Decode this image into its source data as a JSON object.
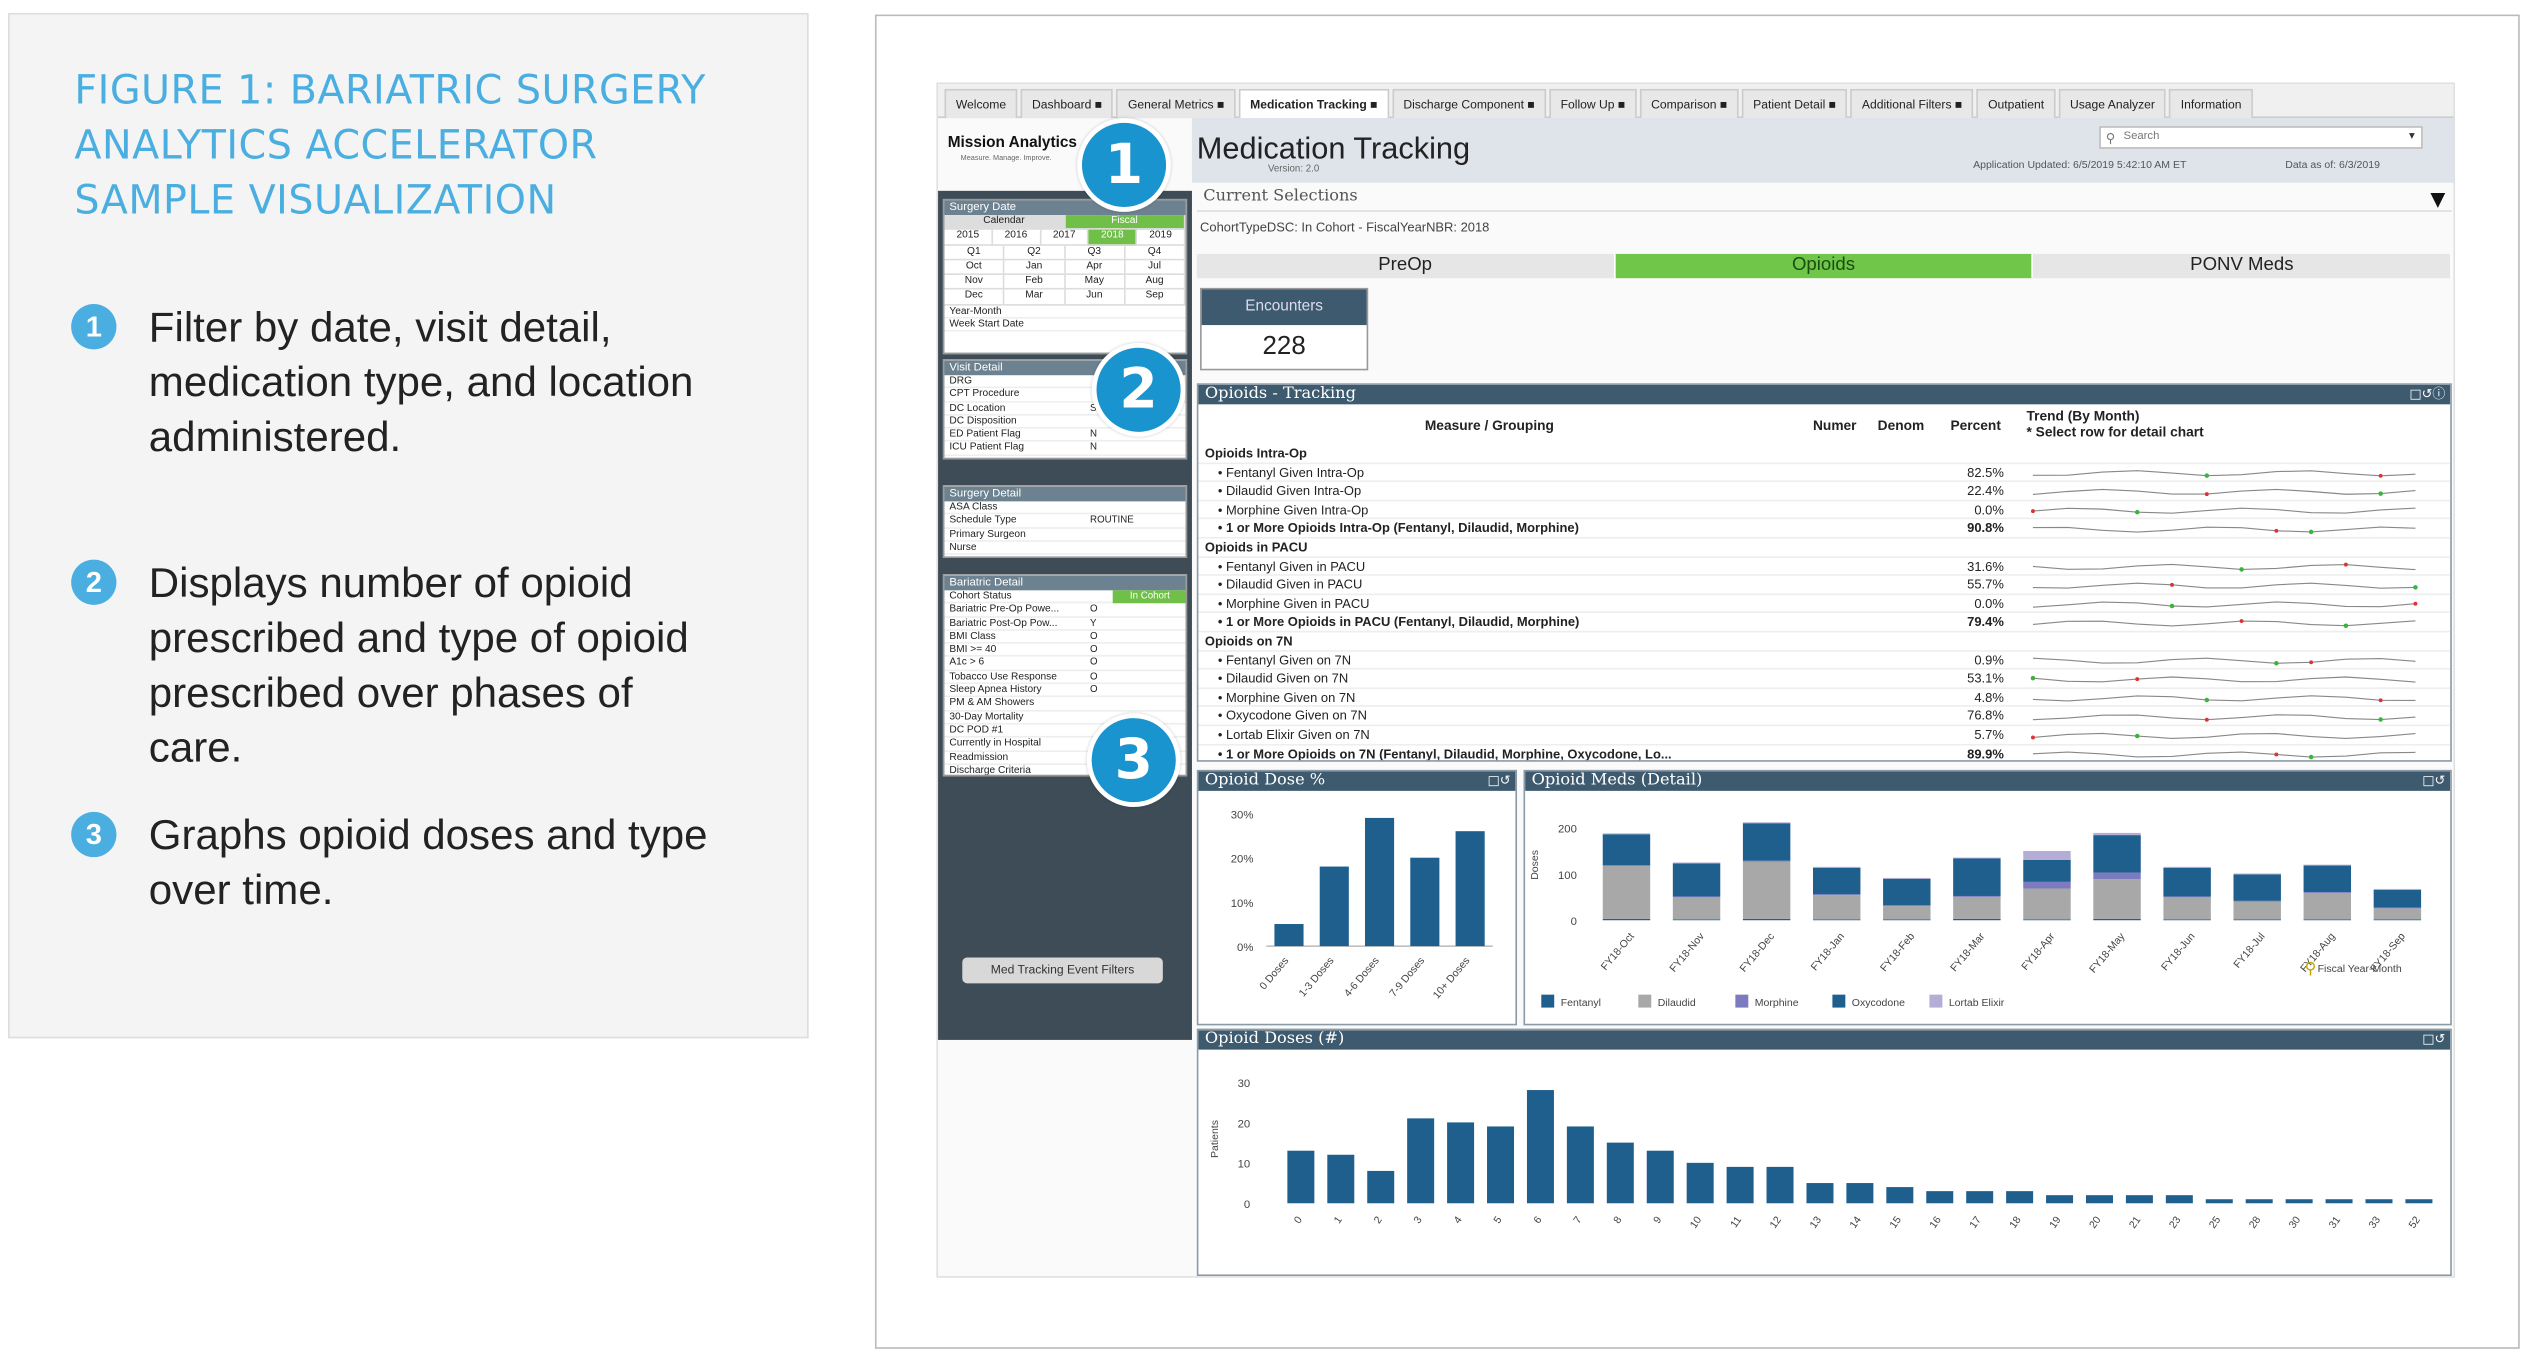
{
  "caption": {
    "title": "FIGURE 1: BARIATRIC SURGERY ANALYTICS ACCELERATOR SAMPLE VISUALIZATION",
    "items": [
      {
        "num": "1",
        "text": "Filter by date, visit detail, medication type, and location administered."
      },
      {
        "num": "2",
        "text": "Displays number of opioid prescribed and type of opioid prescribed over phases of care."
      },
      {
        "num": "3",
        "text": "Graphs opioid doses and type over time."
      }
    ]
  },
  "tabs": [
    "Welcome",
    "Dashboard ■",
    "General Metrics ■",
    "Medication Tracking ■",
    "Discharge Component ■",
    "Follow Up ■",
    "Comparison ■",
    "Patient Detail ■",
    "Additional Filters ■",
    "Outpatient",
    "Usage Analyzer",
    "Information"
  ],
  "header": {
    "logo": "Mission Analytics",
    "logo_sub": "Measure. Manage. Improve.",
    "title": "Medication Tracking",
    "version": "Version: 2.0",
    "search_placeholder": "Search",
    "updated": "Application Updated: 6/5/2019 5:42:10 AM ET",
    "data_as_of": "Data as of: 6/3/2019"
  },
  "badges": [
    "1",
    "2",
    "3"
  ],
  "sidebar": {
    "surgery_date": {
      "title": "Surgery Date",
      "toggle": [
        "Calendar",
        "Fiscal"
      ],
      "years": [
        "2015",
        "2016",
        "2017",
        "2018",
        "2019"
      ],
      "quarters": [
        "Q1",
        "Q2",
        "Q3",
        "Q4"
      ],
      "months": [
        "Oct",
        "Jan",
        "Apr",
        "Jul",
        "Nov",
        "Feb",
        "May",
        "Aug",
        "Dec",
        "Mar",
        "Jun",
        "Sep"
      ],
      "rows": [
        "Year-Month",
        "Week Start Date"
      ]
    },
    "visit_detail": {
      "title": "Visit Detail",
      "rows": [
        [
          "DRG",
          ""
        ],
        [
          "CPT Procedure",
          ""
        ],
        [
          "DC Location",
          "S"
        ],
        [
          "DC Disposition",
          ""
        ],
        [
          "ED Patient Flag",
          "N"
        ],
        [
          "ICU Patient Flag",
          "N"
        ]
      ]
    },
    "surgery_detail": {
      "title": "Surgery Detail",
      "rows": [
        [
          "ASA Class",
          ""
        ],
        [
          "Schedule Type",
          "ROUTINE"
        ],
        [
          "Primary Surgeon",
          ""
        ],
        [
          "Nurse",
          ""
        ]
      ]
    },
    "bariatric_detail": {
      "title": "Bariatric Detail",
      "rows": [
        [
          "Cohort Status",
          "In Cohort"
        ],
        [
          "Bariatric Pre-Op Powe...",
          "O"
        ],
        [
          "Bariatric Post-Op Pow...",
          "Y"
        ],
        [
          "BMI Class",
          "O"
        ],
        [
          "BMI >= 40",
          "O"
        ],
        [
          "A1c > 6",
          "O"
        ],
        [
          "Tobacco Use Response",
          "O"
        ],
        [
          "Sleep Apnea History",
          "O"
        ],
        [
          "PM & AM Showers",
          ""
        ],
        [
          "30-Day Mortality",
          ""
        ],
        [
          "DC POD #1",
          ""
        ],
        [
          "Currently in Hospital",
          ""
        ],
        [
          "Readmission",
          ""
        ],
        [
          "Discharge Criteria",
          ""
        ]
      ]
    },
    "button": "Med Tracking Event Filters"
  },
  "current_selections": {
    "title": "Current Selections",
    "value": "CohortTypeDSC: In Cohort - FiscalYearNBR: 2018"
  },
  "phase_tabs": [
    "PreOp",
    "Opioids",
    "PONV Meds"
  ],
  "encounters": {
    "label": "Encounters",
    "value": "228"
  },
  "tracking": {
    "title": "Opioids - Tracking",
    "columns": [
      "Measure / Grouping",
      "Numer",
      "Denom",
      "Percent",
      "Trend (By Month)",
      "* Select row for detail chart"
    ],
    "rows": [
      {
        "label": "Opioids Intra-Op",
        "pct": "",
        "kind": "grp"
      },
      {
        "label": "•  Fentanyl Given Intra-Op",
        "pct": "82.5%",
        "kind": "item"
      },
      {
        "label": "•  Dilaudid Given Intra-Op",
        "pct": "22.4%",
        "kind": "item"
      },
      {
        "label": "•  Morphine Given Intra-Op",
        "pct": "0.0%",
        "kind": "item"
      },
      {
        "label": "•  1 or More Opioids Intra-Op (Fentanyl, Dilaudid, Morphine)",
        "pct": "90.8%",
        "kind": "tot"
      },
      {
        "label": "Opioids in PACU",
        "pct": "",
        "kind": "grp"
      },
      {
        "label": "•  Fentanyl Given in PACU",
        "pct": "31.6%",
        "kind": "item"
      },
      {
        "label": "•  Dilaudid Given in PACU",
        "pct": "55.7%",
        "kind": "item"
      },
      {
        "label": "•  Morphine Given in PACU",
        "pct": "0.0%",
        "kind": "item"
      },
      {
        "label": "•  1 or More Opioids in PACU (Fentanyl, Dilaudid, Morphine)",
        "pct": "79.4%",
        "kind": "tot"
      },
      {
        "label": "Opioids on 7N",
        "pct": "",
        "kind": "grp"
      },
      {
        "label": "•  Fentanyl Given on 7N",
        "pct": "0.9%",
        "kind": "item"
      },
      {
        "label": "•  Dilaudid Given on 7N",
        "pct": "53.1%",
        "kind": "item"
      },
      {
        "label": "•  Morphine Given on 7N",
        "pct": "4.8%",
        "kind": "item"
      },
      {
        "label": "•  Oxycodone Given on 7N",
        "pct": "76.8%",
        "kind": "item"
      },
      {
        "label": "•  Lortab Elixir Given on 7N",
        "pct": "5.7%",
        "kind": "item"
      },
      {
        "label": "•  1 or More Opioids on 7N (Fentanyl, Dilaudid, Morphine, Oxycodone, Lo...",
        "pct": "89.9%",
        "kind": "tot"
      }
    ]
  },
  "chart_data": [
    {
      "type": "bar",
      "title": "Opioid Dose %",
      "categories": [
        "0 Doses",
        "1-3 Doses",
        "4-6 Doses",
        "7-9 Doses",
        "10+ Doses"
      ],
      "values": [
        5,
        18,
        29,
        20,
        26
      ],
      "yticks": [
        "0%",
        "10%",
        "20%",
        "30%"
      ],
      "ylim": [
        0,
        30
      ],
      "color": "#1f5f8e"
    },
    {
      "type": "bar",
      "stacked": true,
      "title": "Opioid Meds (Detail)",
      "ylabel": "Doses",
      "xlabel": "Fiscal Year-Month",
      "categories": [
        "FY18-Oct",
        "FY18-Nov",
        "FY18-Dec",
        "FY18-Jan",
        "FY18-Feb",
        "FY18-Mar",
        "FY18-Apr",
        "FY18-May",
        "FY18-Jun",
        "FY18-Jul",
        "FY18-Aug",
        "FY18-Sep"
      ],
      "yticks": [
        "0",
        "100",
        "200"
      ],
      "ylim": [
        0,
        220
      ],
      "series": [
        {
          "name": "Fentanyl",
          "color": "#1f5f8e",
          "values": [
            3,
            2,
            3,
            2,
            2,
            3,
            2,
            3,
            2,
            2,
            2,
            2
          ]
        },
        {
          "name": "Dilaudid",
          "color": "#a8a8a8",
          "values": [
            120,
            50,
            130,
            55,
            30,
            50,
            70,
            90,
            50,
            40,
            60,
            25
          ]
        },
        {
          "name": "Morphine",
          "color": "#7c7bbf",
          "values": [
            2,
            2,
            2,
            2,
            2,
            2,
            15,
            15,
            2,
            2,
            2,
            2
          ]
        },
        {
          "name": "Oxycodone",
          "color": "#1f5f8e",
          "values": [
            70,
            75,
            85,
            60,
            60,
            85,
            50,
            85,
            65,
            60,
            60,
            40
          ]
        },
        {
          "name": "Lortab Elixir",
          "color": "#b4aed6",
          "values": [
            2,
            2,
            2,
            2,
            2,
            2,
            20,
            5,
            2,
            2,
            2,
            2
          ]
        }
      ]
    },
    {
      "type": "bar",
      "title": "Opioid Doses (#)",
      "ylabel": "Patients",
      "categories": [
        "0",
        "1",
        "2",
        "3",
        "4",
        "5",
        "6",
        "7",
        "8",
        "9",
        "10",
        "11",
        "12",
        "13",
        "14",
        "15",
        "16",
        "17",
        "18",
        "19",
        "20",
        "21",
        "23",
        "25",
        "28",
        "30",
        "31",
        "33",
        "52"
      ],
      "values": [
        13,
        12,
        8,
        21,
        20,
        19,
        28,
        19,
        15,
        13,
        10,
        9,
        9,
        5,
        5,
        4,
        3,
        3,
        3,
        2,
        2,
        2,
        2,
        1,
        1,
        1,
        1,
        1,
        1
      ],
      "yticks": [
        "0",
        "10",
        "20",
        "30"
      ],
      "ylim": [
        0,
        30
      ],
      "color": "#1f5f8e"
    }
  ],
  "legend_icon": "filter-icon"
}
